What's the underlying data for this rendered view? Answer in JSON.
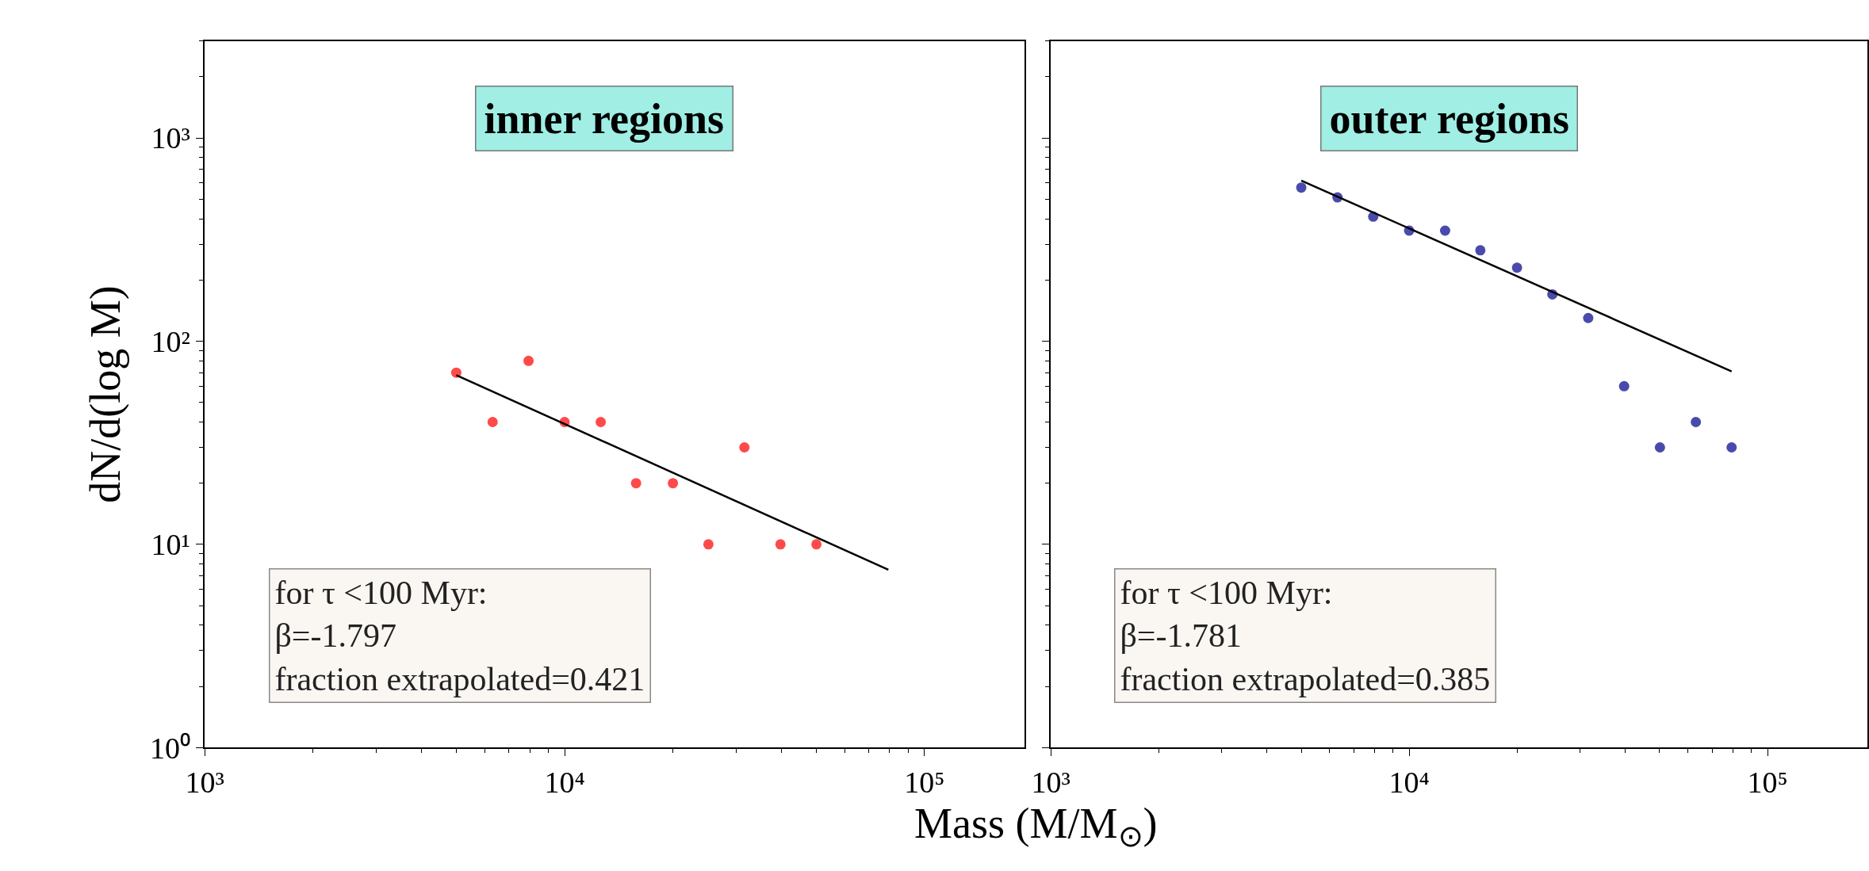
{
  "chart_data": [
    {
      "type": "scatter",
      "ylabel": "dN/d(log M)",
      "xlabel": "Mass (M/M$_{⊙}$)",
      "log": "xy",
      "marker": "circle",
      "xlim": [
        1000,
        190000
      ],
      "ylim": [
        1,
        3000
      ],
      "xticks": [
        {
          "value": 1000,
          "label": "10³"
        },
        {
          "value": 10000,
          "label": "10⁴"
        },
        {
          "value": 100000,
          "label": "10⁵"
        }
      ],
      "yticks": [
        {
          "value": 1,
          "label": "10⁰"
        },
        {
          "value": 10,
          "label": "10¹"
        },
        {
          "value": 100,
          "label": "10²"
        },
        {
          "value": 1000,
          "label": "10³"
        }
      ],
      "series": [
        {
          "color": "#ff2a2a",
          "x": [
            5000,
            6310,
            7940,
            10000,
            12600,
            15800,
            20000,
            25100,
            31600,
            39800,
            50100
          ],
          "values": [
            70,
            40,
            80,
            40,
            40,
            20,
            20,
            10,
            30,
            10,
            10
          ]
        },
        {
          "type": "line",
          "color": "#000000",
          "marker": "none",
          "x": [
            5000,
            79400
          ],
          "values": [
            68,
            7.5
          ]
        }
      ],
      "annotations": [
        "inner regions",
        "for τ <100 Myr:",
        "β=-1.797",
        "fraction extrapolated=0.421"
      ]
    },
    {
      "type": "scatter",
      "log": "xy",
      "marker": "circle",
      "tick_labels": "x",
      "xlim": [
        1000,
        190000
      ],
      "ylim": [
        1,
        3000
      ],
      "xticks": [
        {
          "value": 1000,
          "label": "10³"
        },
        {
          "value": 10000,
          "label": "10⁴"
        },
        {
          "value": 100000,
          "label": "10⁵"
        }
      ],
      "yticks": [
        {
          "value": 1,
          "label": null
        },
        {
          "value": 10,
          "label": null
        },
        {
          "value": 100,
          "label": null
        },
        {
          "value": 1000,
          "label": null
        }
      ],
      "series": [
        {
          "color": "#2a2a9e",
          "x": [
            5000,
            6310,
            7940,
            10000,
            12600,
            15800,
            20000,
            25100,
            31600,
            39800,
            50100,
            63100,
            79400
          ],
          "values": [
            570,
            510,
            410,
            350,
            350,
            280,
            230,
            170,
            130,
            60,
            30,
            40,
            30
          ]
        },
        {
          "type": "line",
          "color": "#000000",
          "marker": "none",
          "x": [
            5000,
            79400
          ],
          "values": [
            617,
            71
          ]
        }
      ],
      "annotations": [
        "outer regions",
        "for τ <100 Myr:",
        "β=-1.781",
        "fraction extrapolated=0.385"
      ]
    }
  ]
}
